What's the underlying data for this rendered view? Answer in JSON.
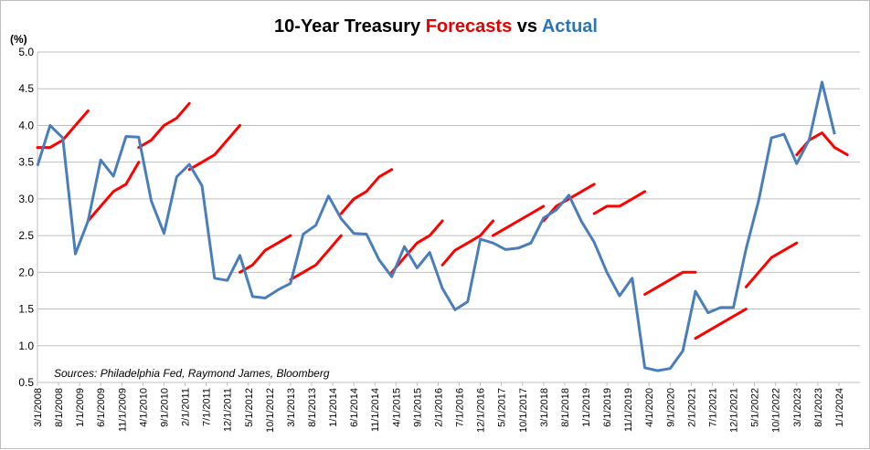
{
  "chart_data": {
    "type": "line",
    "title_parts": [
      {
        "text": "10-Year Treasury ",
        "color": "#000000"
      },
      {
        "text": "Forecasts",
        "color": "#e60000"
      },
      {
        "text": " vs ",
        "color": "#000000"
      },
      {
        "text": "Actual",
        "color": "#2e75b6"
      }
    ],
    "ylabel": "(%)",
    "ylim": [
      0.5,
      5.0
    ],
    "yticks": [
      0.5,
      1.0,
      1.5,
      2.0,
      2.5,
      3.0,
      3.5,
      4.0,
      4.5,
      5.0
    ],
    "ytick_labels": [
      "0.5",
      "1.0",
      "1.5",
      "2.0",
      "2.5",
      "3.0",
      "3.5",
      "4.0",
      "4.5",
      "5.0"
    ],
    "x_range": [
      "2008-03",
      "2024-06"
    ],
    "xtick_labels": [
      "3/1/2008",
      "8/1/2008",
      "1/1/2009",
      "6/1/2009",
      "11/1/2009",
      "4/1/2010",
      "9/1/2010",
      "2/1/2011",
      "7/1/2011",
      "12/1/2011",
      "5/1/2012",
      "10/1/2012",
      "3/1/2013",
      "8/1/2013",
      "1/1/2014",
      "6/1/2014",
      "11/1/2014",
      "4/1/2015",
      "9/1/2015",
      "2/1/2016",
      "7/1/2016",
      "12/1/2016",
      "5/1/2017",
      "10/1/2017",
      "3/1/2018",
      "8/1/2018",
      "1/1/2019",
      "6/1/2019",
      "11/1/2019",
      "4/1/2020",
      "9/1/2020",
      "2/1/2021",
      "7/1/2021",
      "12/1/2021",
      "5/1/2022",
      "10/1/2022",
      "3/1/2023",
      "8/1/2023",
      "1/1/2024"
    ],
    "grid": true,
    "source_note": "Sources: Philadelphia Fed, Raymond James, Bloomberg",
    "series": [
      {
        "name": "Actual",
        "color": "#4a7ebb",
        "points": [
          [
            "2008-03",
            3.45
          ],
          [
            "2008-06",
            4.0
          ],
          [
            "2008-09",
            3.83
          ],
          [
            "2008-12",
            2.25
          ],
          [
            "2009-03",
            2.7
          ],
          [
            "2009-06",
            3.53
          ],
          [
            "2009-09",
            3.31
          ],
          [
            "2009-12",
            3.85
          ],
          [
            "2010-03",
            3.84
          ],
          [
            "2010-06",
            2.97
          ],
          [
            "2010-09",
            2.53
          ],
          [
            "2010-12",
            3.3
          ],
          [
            "2011-03",
            3.47
          ],
          [
            "2011-06",
            3.18
          ],
          [
            "2011-09",
            1.92
          ],
          [
            "2011-12",
            1.89
          ],
          [
            "2012-03",
            2.23
          ],
          [
            "2012-06",
            1.67
          ],
          [
            "2012-09",
            1.65
          ],
          [
            "2012-12",
            1.76
          ],
          [
            "2013-03",
            1.85
          ],
          [
            "2013-06",
            2.52
          ],
          [
            "2013-09",
            2.64
          ],
          [
            "2013-12",
            3.04
          ],
          [
            "2014-03",
            2.73
          ],
          [
            "2014-06",
            2.53
          ],
          [
            "2014-09",
            2.52
          ],
          [
            "2014-12",
            2.17
          ],
          [
            "2015-03",
            1.94
          ],
          [
            "2015-06",
            2.35
          ],
          [
            "2015-09",
            2.06
          ],
          [
            "2015-12",
            2.27
          ],
          [
            "2016-03",
            1.78
          ],
          [
            "2016-06",
            1.49
          ],
          [
            "2016-09",
            1.6
          ],
          [
            "2016-12",
            2.45
          ],
          [
            "2017-03",
            2.4
          ],
          [
            "2017-06",
            2.31
          ],
          [
            "2017-09",
            2.33
          ],
          [
            "2017-12",
            2.4
          ],
          [
            "2018-03",
            2.74
          ],
          [
            "2018-06",
            2.85
          ],
          [
            "2018-09",
            3.05
          ],
          [
            "2018-12",
            2.69
          ],
          [
            "2019-03",
            2.41
          ],
          [
            "2019-06",
            2.0
          ],
          [
            "2019-09",
            1.68
          ],
          [
            "2019-12",
            1.92
          ],
          [
            "2020-03",
            0.7
          ],
          [
            "2020-06",
            0.66
          ],
          [
            "2020-09",
            0.69
          ],
          [
            "2020-12",
            0.93
          ],
          [
            "2021-03",
            1.74
          ],
          [
            "2021-06",
            1.45
          ],
          [
            "2021-09",
            1.52
          ],
          [
            "2021-12",
            1.52
          ],
          [
            "2022-03",
            2.32
          ],
          [
            "2022-06",
            2.98
          ],
          [
            "2022-09",
            3.83
          ],
          [
            "2022-12",
            3.88
          ],
          [
            "2023-03",
            3.48
          ],
          [
            "2023-06",
            3.81
          ],
          [
            "2023-09",
            4.59
          ],
          [
            "2023-12",
            3.88
          ]
        ]
      },
      {
        "color": "#ff0000",
        "segments": [
          [
            [
              "2008-03",
              3.7
            ],
            [
              "2008-06",
              3.7
            ],
            [
              "2008-09",
              3.8
            ],
            [
              "2008-12",
              4.0
            ],
            [
              "2009-03",
              4.2
            ]
          ],
          [
            [
              "2009-03",
              2.7
            ],
            [
              "2009-06",
              2.9
            ],
            [
              "2009-09",
              3.1
            ],
            [
              "2009-12",
              3.2
            ],
            [
              "2010-03",
              3.5
            ]
          ],
          [
            [
              "2010-03",
              3.7
            ],
            [
              "2010-06",
              3.8
            ],
            [
              "2010-09",
              4.0
            ],
            [
              "2010-12",
              4.1
            ],
            [
              "2011-03",
              4.3
            ]
          ],
          [
            [
              "2011-03",
              3.4
            ],
            [
              "2011-06",
              3.5
            ],
            [
              "2011-09",
              3.6
            ],
            [
              "2011-12",
              3.8
            ],
            [
              "2012-03",
              4.0
            ]
          ],
          [
            [
              "2012-03",
              2.0
            ],
            [
              "2012-06",
              2.1
            ],
            [
              "2012-09",
              2.3
            ],
            [
              "2012-12",
              2.4
            ],
            [
              "2013-03",
              2.5
            ]
          ],
          [
            [
              "2013-03",
              1.9
            ],
            [
              "2013-06",
              2.0
            ],
            [
              "2013-09",
              2.1
            ],
            [
              "2013-12",
              2.3
            ],
            [
              "2014-03",
              2.5
            ]
          ],
          [
            [
              "2014-03",
              2.8
            ],
            [
              "2014-06",
              3.0
            ],
            [
              "2014-09",
              3.1
            ],
            [
              "2014-12",
              3.3
            ],
            [
              "2015-03",
              3.4
            ]
          ],
          [
            [
              "2015-03",
              2.0
            ],
            [
              "2015-06",
              2.2
            ],
            [
              "2015-09",
              2.4
            ],
            [
              "2015-12",
              2.5
            ],
            [
              "2016-03",
              2.7
            ]
          ],
          [
            [
              "2016-03",
              2.1
            ],
            [
              "2016-06",
              2.3
            ],
            [
              "2016-09",
              2.4
            ],
            [
              "2016-12",
              2.5
            ],
            [
              "2017-03",
              2.7
            ]
          ],
          [
            [
              "2017-03",
              2.5
            ],
            [
              "2017-06",
              2.6
            ],
            [
              "2017-09",
              2.7
            ],
            [
              "2017-12",
              2.8
            ],
            [
              "2018-03",
              2.9
            ]
          ],
          [
            [
              "2018-03",
              2.7
            ],
            [
              "2018-06",
              2.9
            ],
            [
              "2018-09",
              3.0
            ],
            [
              "2018-12",
              3.1
            ],
            [
              "2019-03",
              3.2
            ]
          ],
          [
            [
              "2019-03",
              2.8
            ],
            [
              "2019-06",
              2.9
            ],
            [
              "2019-09",
              2.9
            ],
            [
              "2019-12",
              3.0
            ],
            [
              "2020-03",
              3.1
            ]
          ],
          [
            [
              "2020-03",
              1.7
            ],
            [
              "2020-06",
              1.8
            ],
            [
              "2020-09",
              1.9
            ],
            [
              "2020-12",
              2.0
            ],
            [
              "2021-03",
              2.0
            ]
          ],
          [
            [
              "2021-03",
              1.1
            ],
            [
              "2021-06",
              1.2
            ],
            [
              "2021-09",
              1.3
            ],
            [
              "2021-12",
              1.4
            ],
            [
              "2022-03",
              1.5
            ]
          ],
          [
            [
              "2022-03",
              1.8
            ],
            [
              "2022-06",
              2.0
            ],
            [
              "2022-09",
              2.2
            ],
            [
              "2022-12",
              2.3
            ],
            [
              "2023-03",
              2.4
            ]
          ],
          [
            [
              "2023-03",
              3.6
            ],
            [
              "2023-06",
              3.8
            ],
            [
              "2023-09",
              3.9
            ],
            [
              "2023-12",
              3.7
            ],
            [
              "2024-03",
              3.6
            ]
          ]
        ]
      }
    ]
  }
}
